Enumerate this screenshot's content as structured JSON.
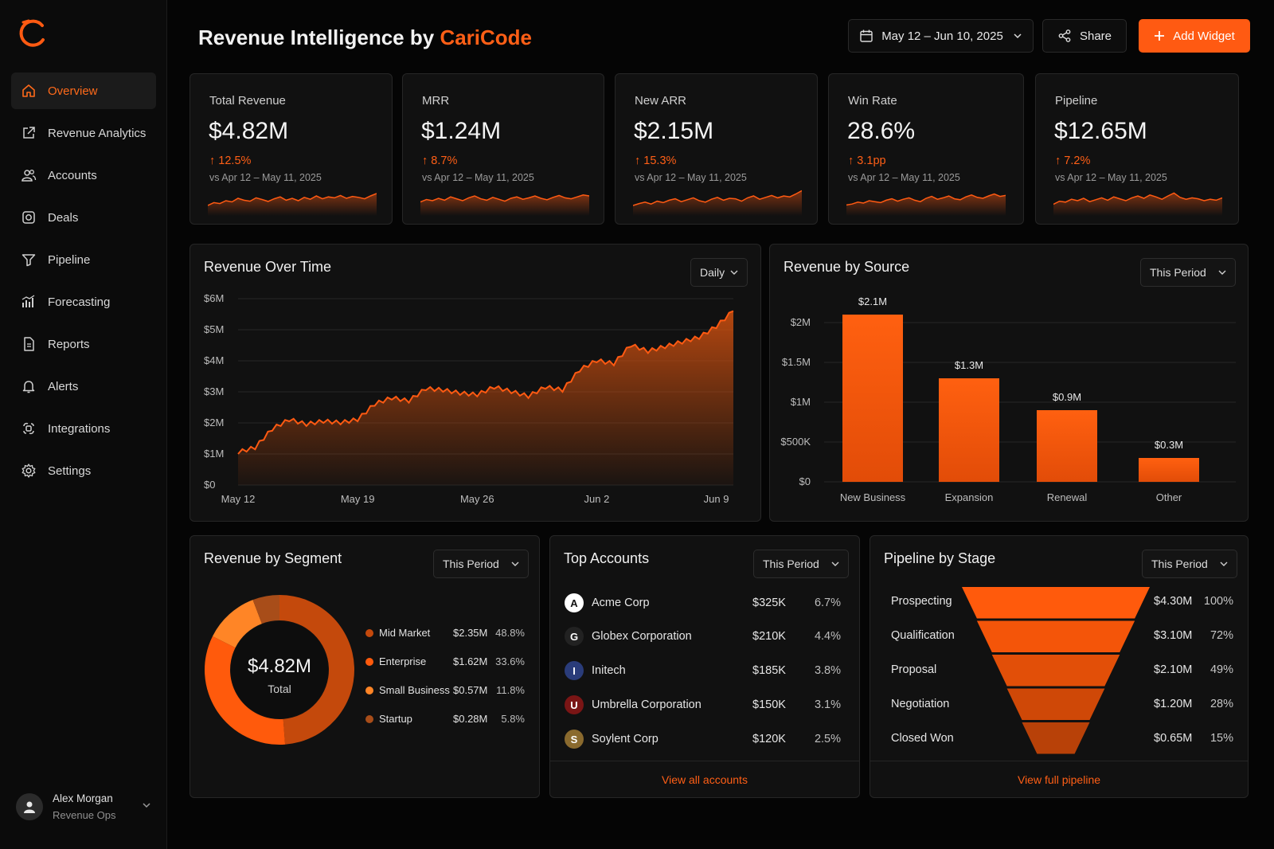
{
  "app": {
    "title_prefix": "Revenue Intelligence by ",
    "title_brand": "CariCode",
    "accent_color": "#ff5a12"
  },
  "sidebar": {
    "items": [
      {
        "label": "Overview",
        "icon": "home-icon",
        "active": true
      },
      {
        "label": "Revenue Analytics",
        "icon": "external-link-icon"
      },
      {
        "label": "Accounts",
        "icon": "users-icon"
      },
      {
        "label": "Deals",
        "icon": "deals-icon"
      },
      {
        "label": "Pipeline",
        "icon": "filter-icon"
      },
      {
        "label": "Forecasting",
        "icon": "bar-chart-icon"
      },
      {
        "label": "Reports",
        "icon": "document-icon"
      },
      {
        "label": "Alerts",
        "icon": "bell-icon"
      },
      {
        "label": "Integrations",
        "icon": "integrations-icon"
      },
      {
        "label": "Settings",
        "icon": "gear-icon"
      }
    ],
    "user": {
      "name": "Alex Morgan",
      "role": "Revenue Ops"
    }
  },
  "toolbar": {
    "date_range": "May 12 – Jun 10, 2025",
    "share_label": "Share",
    "add_widget_label": "Add Widget"
  },
  "kpis": [
    {
      "label": "Total Revenue",
      "value": "$4.82M",
      "delta": "12.5%",
      "comparison": "vs Apr 12 – May 11, 2025"
    },
    {
      "label": "MRR",
      "value": "$1.24M",
      "delta": "8.7%",
      "comparison": "vs Apr 12 – May 11, 2025"
    },
    {
      "label": "New ARR",
      "value": "$2.15M",
      "delta": "15.3%",
      "comparison": "vs Apr 12 – May 11, 2025"
    },
    {
      "label": "Win Rate",
      "value": "28.6%",
      "delta": "3.1pp",
      "comparison": "vs Apr 12 – May 11, 2025"
    },
    {
      "label": "Pipeline",
      "value": "$12.65M",
      "delta": "7.2%",
      "comparison": "vs Apr 12 – May 11, 2025"
    }
  ],
  "revenue_over_time": {
    "title": "Revenue Over Time",
    "granularity": "Daily",
    "y_ticks": [
      "$6M",
      "$5M",
      "$4M",
      "$3M",
      "$2M",
      "$1M",
      "$0"
    ],
    "x_ticks": [
      "May 12",
      "May 19",
      "May 26",
      "Jun 2",
      "Jun 9"
    ]
  },
  "revenue_by_source": {
    "title": "Revenue by Source",
    "period": "This Period",
    "y_ticks": [
      "$2M",
      "$1.5M",
      "$1M",
      "$500K",
      "$0"
    ],
    "labels": [
      "$2.1M",
      "$1.3M",
      "$0.9M",
      "$0.3M"
    ]
  },
  "revenue_by_segment": {
    "title": "Revenue by Segment",
    "period": "This Period",
    "total_value": "$4.82M",
    "total_label": "Total",
    "segments": [
      {
        "name": "Mid Market",
        "value": "$2.35M",
        "pct": "48.8%",
        "color": "#c4490c"
      },
      {
        "name": "Enterprise",
        "value": "$1.62M",
        "pct": "33.6%",
        "color": "#ff5a0c"
      },
      {
        "name": "Small Business",
        "value": "$0.57M",
        "pct": "11.8%",
        "color": "#ff8526"
      },
      {
        "name": "Startup",
        "value": "$0.28M",
        "pct": "5.8%",
        "color": "#a84d19"
      }
    ]
  },
  "top_accounts": {
    "title": "Top Accounts",
    "period": "This Period",
    "rows": [
      {
        "name": "Acme Corp",
        "value": "$325K",
        "pct": "6.7%",
        "logo": "A"
      },
      {
        "name": "Globex Corporation",
        "value": "$210K",
        "pct": "4.4%",
        "logo": "G"
      },
      {
        "name": "Initech",
        "value": "$185K",
        "pct": "3.8%",
        "logo": "I"
      },
      {
        "name": "Umbrella Corporation",
        "value": "$150K",
        "pct": "3.1%",
        "logo": "U"
      },
      {
        "name": "Soylent Corp",
        "value": "$120K",
        "pct": "2.5%",
        "logo": "S"
      }
    ],
    "footer_link": "View all accounts"
  },
  "pipeline_by_stage": {
    "title": "Pipeline by Stage",
    "period": "This Period",
    "stages": [
      {
        "name": "Prospecting",
        "value": "$4.30M",
        "pct": "100%",
        "share": 1.0
      },
      {
        "name": "Qualification",
        "value": "$3.10M",
        "pct": "72%",
        "share": 0.72
      },
      {
        "name": "Proposal",
        "value": "$2.10M",
        "pct": "49%",
        "share": 0.49
      },
      {
        "name": "Negotiation",
        "value": "$1.20M",
        "pct": "28%",
        "share": 0.28
      },
      {
        "name": "Closed Won",
        "value": "$0.65M",
        "pct": "15%",
        "share": 0.15
      }
    ],
    "footer_link": "View full pipeline"
  },
  "chart_data": [
    {
      "type": "area",
      "title": "Revenue Over Time",
      "x": [
        "May 12",
        "May 13",
        "May 14",
        "May 15",
        "May 16",
        "May 17",
        "May 18",
        "May 19",
        "May 20",
        "May 21",
        "May 22",
        "May 23",
        "May 24",
        "May 25",
        "May 26",
        "May 27",
        "May 28",
        "May 29",
        "May 30",
        "May 31",
        "Jun 1",
        "Jun 2",
        "Jun 3",
        "Jun 4",
        "Jun 5",
        "Jun 6",
        "Jun 7",
        "Jun 8",
        "Jun 9",
        "Jun 10"
      ],
      "values": [
        1.05,
        1.2,
        1.8,
        2.1,
        1.95,
        2.05,
        2.0,
        2.1,
        2.6,
        2.8,
        2.7,
        3.1,
        3.05,
        2.95,
        2.9,
        3.15,
        3.0,
        2.85,
        3.15,
        3.05,
        3.7,
        4.0,
        3.9,
        4.5,
        4.3,
        4.45,
        4.6,
        4.75,
        5.1,
        5.6
      ],
      "ylim": [
        0,
        6
      ],
      "y_unit": "$M"
    },
    {
      "type": "bar",
      "title": "Revenue by Source",
      "categories": [
        "New Business",
        "Expansion",
        "Renewal",
        "Other"
      ],
      "values": [
        2.1,
        1.3,
        0.9,
        0.3
      ],
      "ylim": [
        0,
        2.2
      ],
      "y_unit": "$M"
    },
    {
      "type": "pie",
      "title": "Revenue by Segment",
      "categories": [
        "Mid Market",
        "Enterprise",
        "Small Business",
        "Startup"
      ],
      "values": [
        48.8,
        33.6,
        11.8,
        5.8
      ]
    }
  ],
  "sparklines": [
    [
      0.3,
      0.42,
      0.38,
      0.5,
      0.45,
      0.6,
      0.52,
      0.48,
      0.62,
      0.55,
      0.47,
      0.58,
      0.66,
      0.52,
      0.6,
      0.5,
      0.64,
      0.56,
      0.7,
      0.58,
      0.66,
      0.62,
      0.72,
      0.6,
      0.68,
      0.64,
      0.58,
      0.7,
      0.8
    ],
    [
      0.45,
      0.55,
      0.5,
      0.6,
      0.52,
      0.66,
      0.58,
      0.5,
      0.62,
      0.7,
      0.58,
      0.52,
      0.64,
      0.56,
      0.48,
      0.6,
      0.66,
      0.56,
      0.62,
      0.7,
      0.6,
      0.54,
      0.64,
      0.72,
      0.62,
      0.58,
      0.66,
      0.74,
      0.7
    ],
    [
      0.3,
      0.38,
      0.44,
      0.36,
      0.48,
      0.42,
      0.52,
      0.58,
      0.46,
      0.54,
      0.62,
      0.5,
      0.44,
      0.56,
      0.64,
      0.52,
      0.6,
      0.58,
      0.48,
      0.62,
      0.7,
      0.56,
      0.64,
      0.72,
      0.62,
      0.7,
      0.66,
      0.78,
      0.92
    ],
    [
      0.32,
      0.36,
      0.44,
      0.4,
      0.5,
      0.46,
      0.42,
      0.52,
      0.58,
      0.48,
      0.56,
      0.62,
      0.52,
      0.46,
      0.6,
      0.68,
      0.56,
      0.62,
      0.7,
      0.58,
      0.54,
      0.66,
      0.74,
      0.64,
      0.6,
      0.7,
      0.78,
      0.68,
      0.72
    ],
    [
      0.35,
      0.48,
      0.44,
      0.56,
      0.5,
      0.6,
      0.46,
      0.54,
      0.62,
      0.52,
      0.66,
      0.58,
      0.5,
      0.62,
      0.7,
      0.6,
      0.74,
      0.66,
      0.56,
      0.7,
      0.82,
      0.64,
      0.56,
      0.62,
      0.58,
      0.5,
      0.56,
      0.52,
      0.62
    ]
  ]
}
